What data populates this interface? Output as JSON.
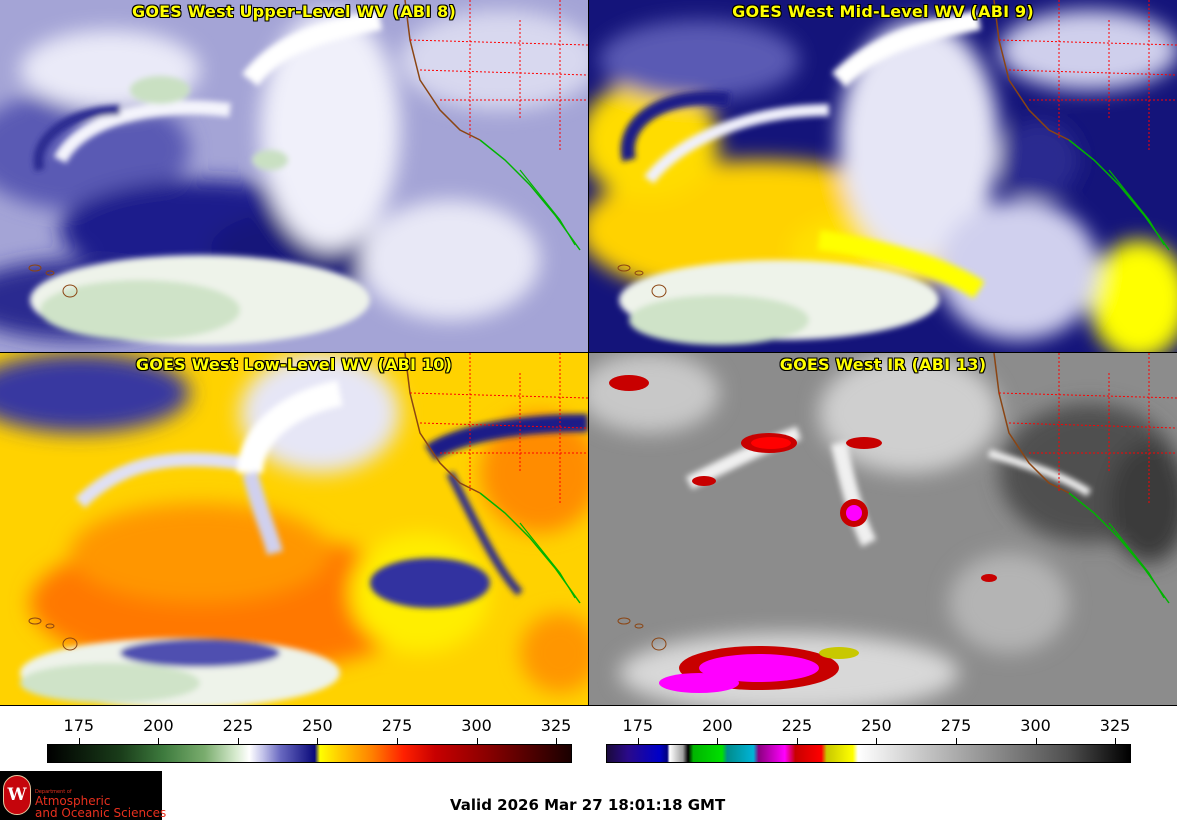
{
  "panels": [
    {
      "id": "ul",
      "title": "GOES West Upper-Level WV (ABI 8)"
    },
    {
      "id": "ml",
      "title": "GOES West Mid-Level WV (ABI 9)"
    },
    {
      "id": "ll",
      "title": "GOES West Low-Level WV (ABI 10)"
    },
    {
      "id": "ir",
      "title": "GOES West IR (ABI 13)"
    }
  ],
  "colorbar_left": {
    "ticks": [
      "175",
      "200",
      "225",
      "250",
      "275",
      "300",
      "325"
    ],
    "range": [
      165,
      330
    ]
  },
  "colorbar_right": {
    "ticks": [
      "175",
      "200",
      "225",
      "250",
      "275",
      "300",
      "325"
    ],
    "range": [
      165,
      330
    ]
  },
  "logo": {
    "seal_letter": "W",
    "dept_line": "Department of",
    "line1": "Atmospheric",
    "line2": "and Oceanic Sciences"
  },
  "valid_time": "Valid 2026 Mar 27 18:01:18 GMT",
  "colors": {
    "wv_upper_bg": "#a8a8d8",
    "wv_navy": "#0a0a7a",
    "wv_yellow": "#ffff00",
    "wv_orange": "#ff8c00",
    "ir_gray": "#8c8c8c",
    "ir_magenta": "#ff00ff",
    "ir_red": "#c80000",
    "border_red": "#ff0000",
    "border_brown": "#8b4513",
    "border_green": "#00b400"
  }
}
